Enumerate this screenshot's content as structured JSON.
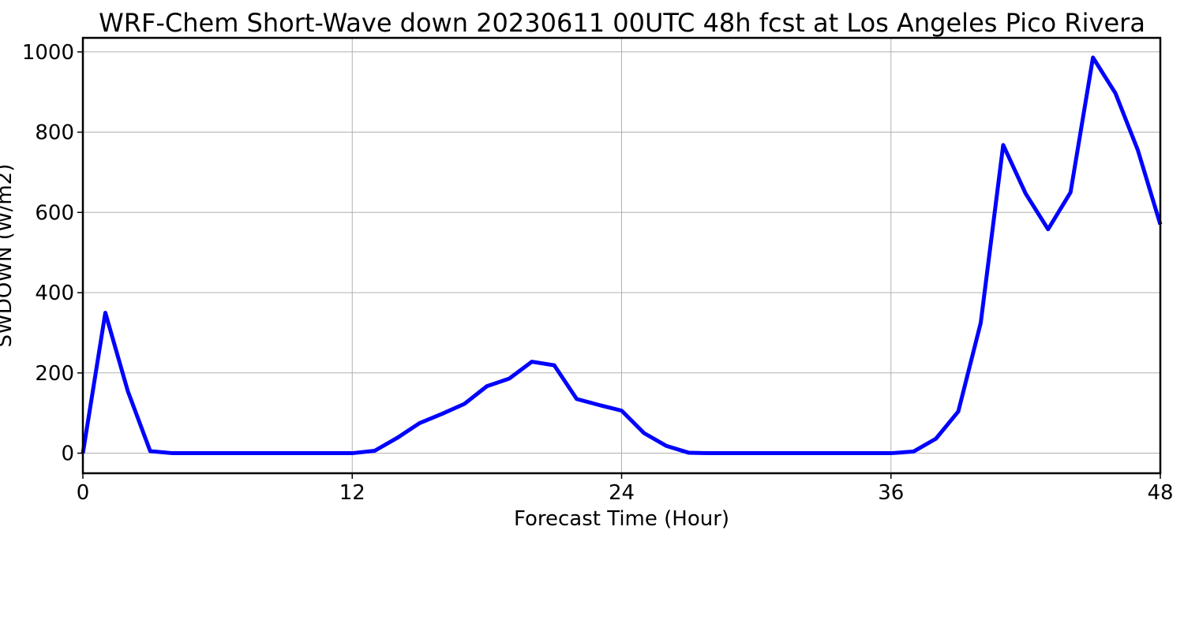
{
  "chart_data": {
    "type": "line",
    "title": "WRF-Chem Short-Wave down  20230611 00UTC 48h fcst at Los Angeles Pico Rivera",
    "xlabel": "Forecast Time (Hour)",
    "ylabel": "SWDOWN  (W/m2)",
    "xlim": [
      0,
      48
    ],
    "ylim": [
      -50,
      1035
    ],
    "xticks": [
      0,
      12,
      24,
      36,
      48
    ],
    "yticks": [
      0,
      200,
      400,
      600,
      800,
      1000
    ],
    "grid": true,
    "series": [
      {
        "color": "#0000ff",
        "x": [
          0,
          1,
          2,
          3,
          4,
          5,
          6,
          7,
          8,
          9,
          10,
          11,
          12,
          13,
          14,
          15,
          16,
          17,
          18,
          19,
          20,
          21,
          22,
          23,
          24,
          25,
          26,
          27,
          28,
          29,
          30,
          31,
          32,
          33,
          34,
          35,
          36,
          37,
          38,
          39,
          40,
          41,
          42,
          43,
          44,
          45,
          46,
          47,
          48
        ],
        "y": [
          0,
          350,
          155,
          5,
          0,
          0,
          0,
          0,
          0,
          0,
          0,
          0,
          0,
          6,
          38,
          75,
          98,
          123,
          167,
          186,
          228,
          219,
          135,
          120,
          106,
          50,
          18,
          1,
          0,
          0,
          0,
          0,
          0,
          0,
          0,
          0,
          0,
          4,
          36,
          104,
          325,
          768,
          647,
          558,
          650,
          986,
          897,
          755,
          570
        ]
      }
    ]
  }
}
